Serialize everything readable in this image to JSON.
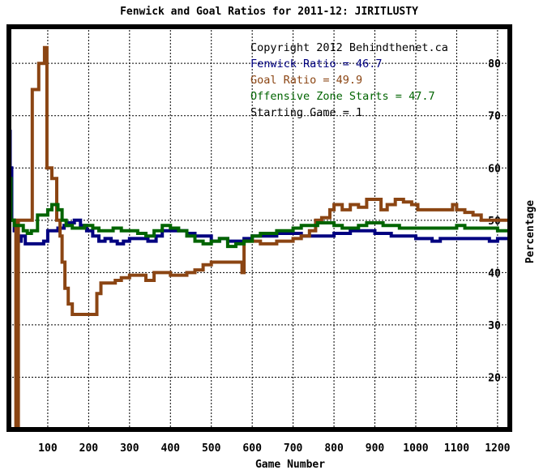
{
  "chart_data": {
    "type": "line",
    "title": "Fenwick and Goal Ratios for 2011-12: JIRITLUSTY",
    "xlabel": "Game Number",
    "ylabel": "Percentage",
    "xlim": [
      5,
      1230
    ],
    "ylim": [
      10,
      87
    ],
    "x_ticks": [
      100,
      200,
      300,
      400,
      500,
      600,
      700,
      800,
      900,
      1000,
      1100,
      1200
    ],
    "y_ticks": [
      20,
      30,
      40,
      50,
      60,
      70,
      80
    ],
    "grid": true,
    "annotations": [
      {
        "text": "Copyright 2012 Behindthenet.ca",
        "color": "#000000"
      },
      {
        "text": "Fenwick Ratio = 46.7",
        "color": "#000080"
      },
      {
        "text": "Goal Ratio = 49.9",
        "color": "#8b4513"
      },
      {
        "text": "Offensive Zone Starts = 47.7",
        "color": "#006400"
      },
      {
        "text": "Starting Game = 1",
        "color": "#000000"
      }
    ],
    "series": [
      {
        "color": "#000080",
        "points": [
          [
            5,
            67
          ],
          [
            8,
            60
          ],
          [
            12,
            50
          ],
          [
            18,
            48
          ],
          [
            25,
            46
          ],
          [
            35,
            47
          ],
          [
            45,
            45.5
          ],
          [
            60,
            45.5
          ],
          [
            75,
            45.5
          ],
          [
            90,
            46
          ],
          [
            100,
            48
          ],
          [
            110,
            48
          ],
          [
            125,
            48.5
          ],
          [
            140,
            49
          ],
          [
            150,
            49.5
          ],
          [
            165,
            50
          ],
          [
            180,
            49
          ],
          [
            195,
            48
          ],
          [
            210,
            47
          ],
          [
            225,
            46
          ],
          [
            240,
            46.5
          ],
          [
            255,
            46
          ],
          [
            270,
            45.5
          ],
          [
            285,
            46
          ],
          [
            300,
            46.5
          ],
          [
            320,
            46.5
          ],
          [
            345,
            46
          ],
          [
            365,
            47
          ],
          [
            380,
            48
          ],
          [
            400,
            48
          ],
          [
            420,
            48
          ],
          [
            440,
            47.5
          ],
          [
            460,
            47
          ],
          [
            480,
            47
          ],
          [
            500,
            46
          ],
          [
            520,
            46.5
          ],
          [
            540,
            46
          ],
          [
            560,
            46
          ],
          [
            580,
            46.5
          ],
          [
            600,
            47
          ],
          [
            620,
            47
          ],
          [
            640,
            47
          ],
          [
            660,
            47.5
          ],
          [
            680,
            47.5
          ],
          [
            700,
            47.5
          ],
          [
            720,
            47
          ],
          [
            740,
            47
          ],
          [
            760,
            47
          ],
          [
            780,
            47
          ],
          [
            800,
            47.5
          ],
          [
            820,
            47.5
          ],
          [
            840,
            48
          ],
          [
            860,
            48
          ],
          [
            880,
            48
          ],
          [
            900,
            47.5
          ],
          [
            920,
            47.5
          ],
          [
            940,
            47
          ],
          [
            960,
            47
          ],
          [
            980,
            47
          ],
          [
            1000,
            46.5
          ],
          [
            1020,
            46.5
          ],
          [
            1040,
            46
          ],
          [
            1060,
            46.5
          ],
          [
            1080,
            46.5
          ],
          [
            1100,
            46.5
          ],
          [
            1120,
            46.5
          ],
          [
            1140,
            46.5
          ],
          [
            1160,
            46.5
          ],
          [
            1180,
            46
          ],
          [
            1200,
            46.5
          ],
          [
            1215,
            46.5
          ],
          [
            1230,
            46.5
          ]
        ]
      },
      {
        "color": "#8b4513",
        "points": [
          [
            5,
            50
          ],
          [
            15,
            50
          ],
          [
            22,
            10
          ],
          [
            26,
            10
          ],
          [
            28,
            50
          ],
          [
            40,
            50
          ],
          [
            50,
            50
          ],
          [
            58,
            50
          ],
          [
            62,
            75
          ],
          [
            72,
            75
          ],
          [
            78,
            80
          ],
          [
            88,
            80
          ],
          [
            92,
            83
          ],
          [
            96,
            83
          ],
          [
            98,
            60
          ],
          [
            106,
            60
          ],
          [
            110,
            58
          ],
          [
            118,
            58
          ],
          [
            122,
            50
          ],
          [
            130,
            47
          ],
          [
            135,
            42
          ],
          [
            142,
            37
          ],
          [
            150,
            34
          ],
          [
            160,
            32
          ],
          [
            180,
            32
          ],
          [
            200,
            32
          ],
          [
            210,
            32
          ],
          [
            220,
            36
          ],
          [
            230,
            38
          ],
          [
            250,
            38
          ],
          [
            265,
            38.5
          ],
          [
            280,
            39
          ],
          [
            300,
            39.5
          ],
          [
            320,
            39.5
          ],
          [
            340,
            38.5
          ],
          [
            360,
            40
          ],
          [
            380,
            40
          ],
          [
            400,
            39.5
          ],
          [
            420,
            39.5
          ],
          [
            440,
            40
          ],
          [
            460,
            40.5
          ],
          [
            480,
            41.5
          ],
          [
            500,
            42
          ],
          [
            520,
            42
          ],
          [
            540,
            42
          ],
          [
            560,
            42
          ],
          [
            575,
            40
          ],
          [
            580,
            46
          ],
          [
            600,
            46
          ],
          [
            620,
            45.5
          ],
          [
            640,
            45.5
          ],
          [
            660,
            46
          ],
          [
            680,
            46
          ],
          [
            700,
            46.5
          ],
          [
            720,
            47
          ],
          [
            740,
            48
          ],
          [
            755,
            50
          ],
          [
            770,
            50.5
          ],
          [
            790,
            52
          ],
          [
            800,
            53
          ],
          [
            820,
            52
          ],
          [
            840,
            53
          ],
          [
            860,
            52.5
          ],
          [
            880,
            54
          ],
          [
            900,
            54
          ],
          [
            915,
            52
          ],
          [
            930,
            53
          ],
          [
            950,
            54
          ],
          [
            970,
            53.5
          ],
          [
            990,
            53
          ],
          [
            1005,
            52
          ],
          [
            1030,
            52
          ],
          [
            1060,
            52
          ],
          [
            1080,
            52
          ],
          [
            1090,
            53
          ],
          [
            1100,
            52
          ],
          [
            1120,
            51.5
          ],
          [
            1140,
            51
          ],
          [
            1160,
            50
          ],
          [
            1180,
            50
          ],
          [
            1200,
            50
          ],
          [
            1215,
            50
          ],
          [
            1230,
            50
          ]
        ]
      },
      {
        "color": "#006400",
        "points": [
          [
            5,
            58
          ],
          [
            10,
            50
          ],
          [
            18,
            49
          ],
          [
            28,
            49
          ],
          [
            40,
            48
          ],
          [
            50,
            47.5
          ],
          [
            60,
            48
          ],
          [
            75,
            51
          ],
          [
            90,
            51
          ],
          [
            100,
            52
          ],
          [
            110,
            53
          ],
          [
            125,
            52
          ],
          [
            135,
            50
          ],
          [
            145,
            49
          ],
          [
            160,
            48.5
          ],
          [
            175,
            48.5
          ],
          [
            190,
            49
          ],
          [
            210,
            48.5
          ],
          [
            225,
            48
          ],
          [
            240,
            48
          ],
          [
            260,
            48.5
          ],
          [
            280,
            48
          ],
          [
            300,
            48
          ],
          [
            320,
            47.5
          ],
          [
            340,
            47
          ],
          [
            360,
            48
          ],
          [
            380,
            49
          ],
          [
            400,
            48.5
          ],
          [
            420,
            48
          ],
          [
            440,
            47
          ],
          [
            460,
            46
          ],
          [
            480,
            45.5
          ],
          [
            500,
            46
          ],
          [
            520,
            46.5
          ],
          [
            540,
            45
          ],
          [
            560,
            45.5
          ],
          [
            580,
            46
          ],
          [
            600,
            47
          ],
          [
            620,
            47.5
          ],
          [
            640,
            47.5
          ],
          [
            660,
            48
          ],
          [
            680,
            48
          ],
          [
            700,
            48.5
          ],
          [
            720,
            49
          ],
          [
            740,
            49
          ],
          [
            760,
            49.5
          ],
          [
            780,
            49.5
          ],
          [
            800,
            49
          ],
          [
            820,
            48.5
          ],
          [
            840,
            48.5
          ],
          [
            860,
            49
          ],
          [
            880,
            49.5
          ],
          [
            900,
            49.5
          ],
          [
            920,
            49
          ],
          [
            940,
            49
          ],
          [
            960,
            48.5
          ],
          [
            980,
            48.5
          ],
          [
            1000,
            48.5
          ],
          [
            1020,
            48.5
          ],
          [
            1040,
            48.5
          ],
          [
            1060,
            48.5
          ],
          [
            1080,
            48.5
          ],
          [
            1100,
            49
          ],
          [
            1120,
            48.5
          ],
          [
            1140,
            48.5
          ],
          [
            1160,
            48.5
          ],
          [
            1180,
            48.5
          ],
          [
            1200,
            48
          ],
          [
            1215,
            48
          ],
          [
            1230,
            47.7
          ]
        ]
      }
    ]
  }
}
